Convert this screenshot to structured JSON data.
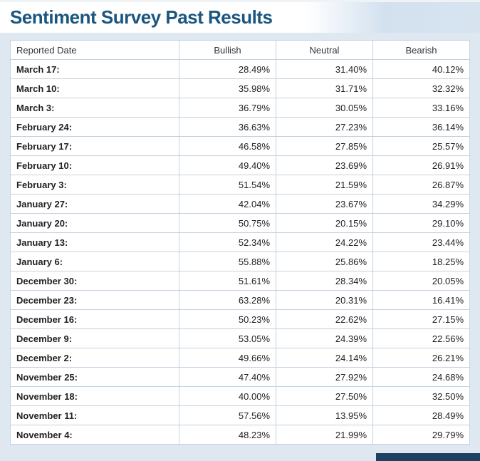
{
  "page": {
    "title": "Sentiment Survey Past Results"
  },
  "table": {
    "headers": {
      "date": "Reported Date",
      "bullish": "Bullish",
      "neutral": "Neutral",
      "bearish": "Bearish"
    },
    "rows": [
      {
        "date": "March 17:",
        "bullish": "28.49%",
        "neutral": "31.40%",
        "bearish": "40.12%"
      },
      {
        "date": "March 10:",
        "bullish": "35.98%",
        "neutral": "31.71%",
        "bearish": "32.32%"
      },
      {
        "date": "March 3:",
        "bullish": "36.79%",
        "neutral": "30.05%",
        "bearish": "33.16%"
      },
      {
        "date": "February 24:",
        "bullish": "36.63%",
        "neutral": "27.23%",
        "bearish": "36.14%"
      },
      {
        "date": "February 17:",
        "bullish": "46.58%",
        "neutral": "27.85%",
        "bearish": "25.57%"
      },
      {
        "date": "February 10:",
        "bullish": "49.40%",
        "neutral": "23.69%",
        "bearish": "26.91%"
      },
      {
        "date": "February 3:",
        "bullish": "51.54%",
        "neutral": "21.59%",
        "bearish": "26.87%"
      },
      {
        "date": "January 27:",
        "bullish": "42.04%",
        "neutral": "23.67%",
        "bearish": "34.29%"
      },
      {
        "date": "January 20:",
        "bullish": "50.75%",
        "neutral": "20.15%",
        "bearish": "29.10%"
      },
      {
        "date": "January 13:",
        "bullish": "52.34%",
        "neutral": "24.22%",
        "bearish": "23.44%"
      },
      {
        "date": "January 6:",
        "bullish": "55.88%",
        "neutral": "25.86%",
        "bearish": "18.25%"
      },
      {
        "date": "December 30:",
        "bullish": "51.61%",
        "neutral": "28.34%",
        "bearish": "20.05%"
      },
      {
        "date": "December 23:",
        "bullish": "63.28%",
        "neutral": "20.31%",
        "bearish": "16.41%"
      },
      {
        "date": "December 16:",
        "bullish": "50.23%",
        "neutral": "22.62%",
        "bearish": "27.15%"
      },
      {
        "date": "December 9:",
        "bullish": "53.05%",
        "neutral": "24.39%",
        "bearish": "22.56%"
      },
      {
        "date": "December 2:",
        "bullish": "49.66%",
        "neutral": "24.14%",
        "bearish": "26.21%"
      },
      {
        "date": "November 25:",
        "bullish": "47.40%",
        "neutral": "27.92%",
        "bearish": "24.68%"
      },
      {
        "date": "November 18:",
        "bullish": "40.00%",
        "neutral": "27.50%",
        "bearish": "32.50%"
      },
      {
        "date": "November 11:",
        "bullish": "57.56%",
        "neutral": "13.95%",
        "bearish": "28.49%"
      },
      {
        "date": "November 4:",
        "bullish": "48.23%",
        "neutral": "21.99%",
        "bearish": "29.79%"
      }
    ]
  },
  "colors": {
    "title": "#1a567f",
    "page_background": "#dfe8f1",
    "table_border": "#c3d2e0",
    "footer_bar": "#1d4063"
  }
}
